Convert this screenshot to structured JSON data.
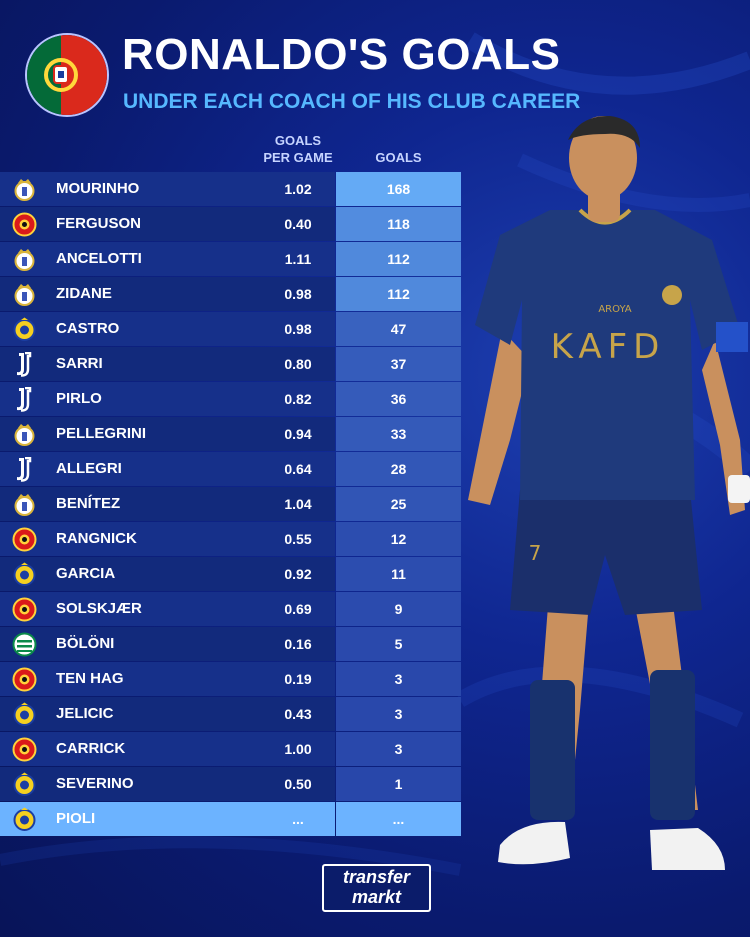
{
  "header": {
    "title": "RONALDO'S GOALS",
    "subtitle": "UNDER EACH COACH OF HIS CLUB CAREER"
  },
  "colors": {
    "portugal_green": "#046a38",
    "portugal_red": "#da291c",
    "accent_blue": "#56b8ff",
    "highlight_row": "#6cb3ff"
  },
  "chart_data": {
    "type": "table",
    "columns": [
      "",
      "GOALS PER GAME",
      "GOALS"
    ],
    "column_head_lines": {
      "gpg": [
        "GOALS",
        "PER GAME"
      ],
      "goals": [
        "GOALS"
      ]
    },
    "rows": [
      {
        "coach": "MOURINHO",
        "club_icon": "real-madrid-crest-icon",
        "gpg": "1.02",
        "goals": "168"
      },
      {
        "coach": "FERGUSON",
        "club_icon": "man-united-crest-icon",
        "gpg": "0.40",
        "goals": "118"
      },
      {
        "coach": "ANCELOTTI",
        "club_icon": "real-madrid-crest-icon",
        "gpg": "1.11",
        "goals": "112"
      },
      {
        "coach": "ZIDANE",
        "club_icon": "real-madrid-crest-icon",
        "gpg": "0.98",
        "goals": "112"
      },
      {
        "coach": "CASTRO",
        "club_icon": "al-nassr-crest-icon",
        "gpg": "0.98",
        "goals": "47"
      },
      {
        "coach": "SARRI",
        "club_icon": "juventus-crest-icon",
        "gpg": "0.80",
        "goals": "37"
      },
      {
        "coach": "PIRLO",
        "club_icon": "juventus-crest-icon",
        "gpg": "0.82",
        "goals": "36"
      },
      {
        "coach": "PELLEGRINI",
        "club_icon": "real-madrid-crest-icon",
        "gpg": "0.94",
        "goals": "33"
      },
      {
        "coach": "ALLEGRI",
        "club_icon": "juventus-crest-icon",
        "gpg": "0.64",
        "goals": "28"
      },
      {
        "coach": "BENÍTEZ",
        "club_icon": "real-madrid-crest-icon",
        "gpg": "1.04",
        "goals": "25"
      },
      {
        "coach": "RANGNICK",
        "club_icon": "man-united-crest-icon",
        "gpg": "0.55",
        "goals": "12"
      },
      {
        "coach": "GARCIA",
        "club_icon": "al-nassr-crest-icon",
        "gpg": "0.92",
        "goals": "11"
      },
      {
        "coach": "SOLSKJÆR",
        "club_icon": "man-united-crest-icon",
        "gpg": "0.69",
        "goals": "9"
      },
      {
        "coach": "BÖLÖNI",
        "club_icon": "sporting-crest-icon",
        "gpg": "0.16",
        "goals": "5"
      },
      {
        "coach": "TEN HAG",
        "club_icon": "man-united-crest-icon",
        "gpg": "0.19",
        "goals": "3"
      },
      {
        "coach": "JELICIC",
        "club_icon": "al-nassr-crest-icon",
        "gpg": "0.43",
        "goals": "3"
      },
      {
        "coach": "CARRICK",
        "club_icon": "man-united-crest-icon",
        "gpg": "1.00",
        "goals": "3"
      },
      {
        "coach": "SEVERINO",
        "club_icon": "al-nassr-crest-icon",
        "gpg": "0.50",
        "goals": "1"
      },
      {
        "coach": "PIOLI",
        "club_icon": "al-nassr-crest-icon",
        "gpg": "...",
        "goals": "...",
        "highlight": true
      }
    ]
  },
  "player_shirt": {
    "sponsor": "KAFD",
    "sleeve_sponsor": "AROYA",
    "shorts_number": "7"
  },
  "footer": {
    "logo_line1": "transfer",
    "logo_line2": "markt"
  }
}
